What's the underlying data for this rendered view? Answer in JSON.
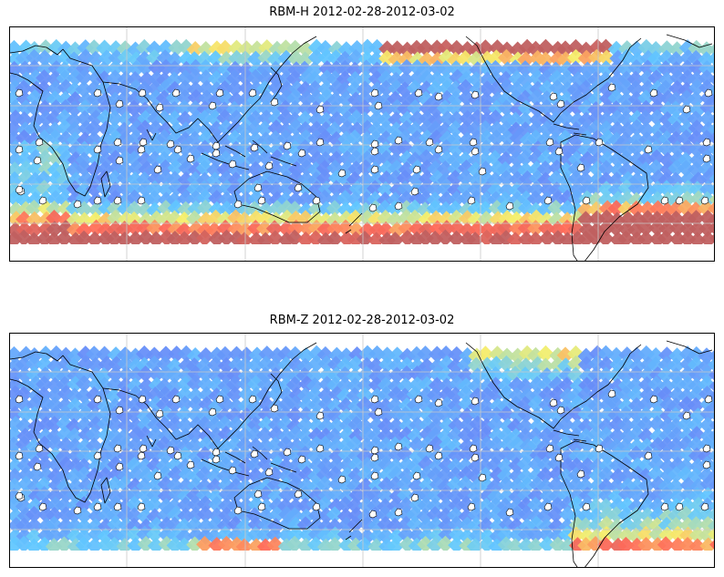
{
  "maps": [
    {
      "title": "RBM-H 2012-02-28-2012-03-02",
      "field": "H",
      "colors": {
        "cool": "#6a6ef5",
        "mid": "#62c8ff",
        "warm": "#f6ef6b",
        "hot": "#ff6a5a",
        "extreme": "#c06060"
      }
    },
    {
      "title": "RBM-Z 2012-02-28-2012-03-02",
      "field": "Z",
      "colors": {
        "cool": "#6a6ef5",
        "mid": "#62c8ff",
        "warm": "#f6ef6b",
        "hot": "#ff6a5a",
        "extreme": "#c06060"
      }
    }
  ],
  "style": {
    "background": "#ffffff",
    "gridline_color": "#c8c8c8",
    "coastline_color": "#000000",
    "station_marker_color": "#ffffff"
  }
}
